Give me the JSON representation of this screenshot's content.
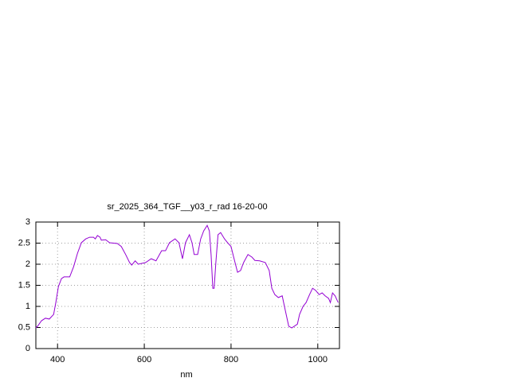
{
  "chart_data": {
    "type": "line",
    "title": "sr_2025_364_TGF__y03_r_rad 16-20-00",
    "x_label": "nm",
    "x": [
      350,
      354,
      363,
      372,
      381,
      391,
      396,
      402,
      409,
      415,
      428,
      437,
      446,
      455,
      465,
      474,
      483,
      487,
      492,
      498,
      501,
      511,
      520,
      538,
      547,
      557,
      566,
      571,
      579,
      586,
      603,
      616,
      627,
      640,
      649,
      658,
      671,
      680,
      688,
      695,
      704,
      710,
      715,
      723,
      730,
      737,
      745,
      750,
      754,
      758,
      761,
      765,
      770,
      776,
      785,
      792,
      800,
      807,
      815,
      822,
      829,
      839,
      848,
      855,
      866,
      879,
      888,
      894,
      901,
      909,
      918,
      925,
      933,
      940,
      953,
      958,
      966,
      973,
      981,
      988,
      995,
      1003,
      1010,
      1017,
      1025,
      1029,
      1034,
      1040,
      1047
    ],
    "series": [
      {
        "color": "#9400d3",
        "values": [
          0.49,
          0.53,
          0.66,
          0.72,
          0.7,
          0.81,
          1.09,
          1.47,
          1.66,
          1.7,
          1.7,
          1.94,
          2.26,
          2.51,
          2.6,
          2.64,
          2.64,
          2.6,
          2.68,
          2.64,
          2.57,
          2.58,
          2.51,
          2.49,
          2.42,
          2.23,
          2.04,
          1.98,
          2.08,
          2.0,
          2.04,
          2.13,
          2.08,
          2.32,
          2.32,
          2.51,
          2.6,
          2.51,
          2.13,
          2.51,
          2.7,
          2.51,
          2.23,
          2.23,
          2.6,
          2.79,
          2.92,
          2.79,
          2.23,
          1.43,
          1.43,
          2.04,
          2.7,
          2.75,
          2.6,
          2.51,
          2.42,
          2.13,
          1.81,
          1.85,
          2.04,
          2.23,
          2.17,
          2.09,
          2.08,
          2.04,
          1.85,
          1.43,
          1.28,
          1.21,
          1.25,
          0.91,
          0.53,
          0.49,
          0.58,
          0.81,
          1.0,
          1.09,
          1.28,
          1.43,
          1.38,
          1.28,
          1.32,
          1.25,
          1.19,
          1.09,
          1.32,
          1.25,
          1.09
        ]
      }
    ],
    "xlim": [
      350,
      1050
    ],
    "xticks": [
      400,
      600,
      800,
      1000
    ],
    "ylim": [
      0,
      3
    ],
    "yticks": [
      0,
      0.5,
      1,
      1.5,
      2,
      2.5,
      3
    ],
    "grid": true
  }
}
